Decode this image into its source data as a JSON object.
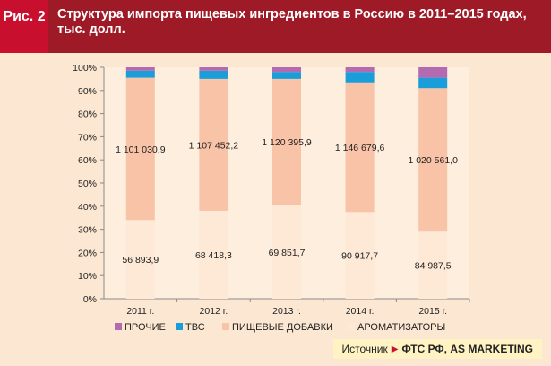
{
  "figure": {
    "label": "Рис. 2",
    "title": "Структура импорта пищевых ингредиентов в Россию в 2011–2015 годах, тыс. долл."
  },
  "source": {
    "label": "Источник",
    "value": "ФТС РФ, AS MARKETING"
  },
  "colors": {
    "header_label_bg": "#c8102e",
    "header_title_bg": "#9e1a26",
    "page_bg": "#fce8d2",
    "plot_bg": "#fdeedd",
    "source_bg": "#fff3c4"
  },
  "chart_data": {
    "type": "bar",
    "stacked": true,
    "percent_scale": true,
    "categories": [
      "2011 г.",
      "2012 г.",
      "2013 г.",
      "2014 г.",
      "2015 г."
    ],
    "y_ticks": [
      "0%",
      "10%",
      "20%",
      "30%",
      "40%",
      "50%",
      "60%",
      "70%",
      "80%",
      "90%",
      "100%"
    ],
    "ylim": [
      0,
      100
    ],
    "grid": false,
    "legend_position": "bottom",
    "series": [
      {
        "name": "АРОМАТИЗАТОРЫ",
        "color": "#fde9d6",
        "values": [
          34,
          38,
          40.5,
          37.5,
          29
        ],
        "labels": [
          "56 893,9",
          "68 418,3",
          "69 851,7",
          "90 917,7",
          "84 987,5"
        ]
      },
      {
        "name": "ПИЩЕВЫЕ ДОБАВКИ",
        "color": "#f8c3a7",
        "values": [
          61.5,
          57,
          54.5,
          56,
          62
        ],
        "labels": [
          "1 101 030,9",
          "1 107 452,2",
          "1 120 395,9",
          "1 146 679,6",
          "1 020 561,0"
        ]
      },
      {
        "name": "ТВС",
        "color": "#1a9ed9",
        "values": [
          3,
          3.5,
          3,
          4.5,
          4.5
        ],
        "labels": []
      },
      {
        "name": "ПРОЧИЕ",
        "color": "#b36ab0",
        "values": [
          1.5,
          1.5,
          2,
          2,
          4.5
        ],
        "labels": []
      }
    ],
    "legend_order": [
      "ПРОЧИЕ",
      "ТВС",
      "ПИЩЕВЫЕ ДОБАВКИ",
      "АРОМАТИЗАТОРЫ"
    ]
  }
}
